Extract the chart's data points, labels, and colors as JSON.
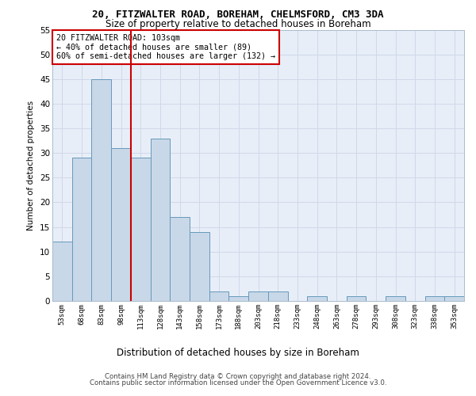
{
  "title1": "20, FITZWALTER ROAD, BOREHAM, CHELMSFORD, CM3 3DA",
  "title2": "Size of property relative to detached houses in Boreham",
  "xlabel": "Distribution of detached houses by size in Boreham",
  "ylabel": "Number of detached properties",
  "categories": [
    "53sqm",
    "68sqm",
    "83sqm",
    "98sqm",
    "113sqm",
    "128sqm",
    "143sqm",
    "158sqm",
    "173sqm",
    "188sqm",
    "203sqm",
    "218sqm",
    "233sqm",
    "248sqm",
    "263sqm",
    "278sqm",
    "293sqm",
    "308sqm",
    "323sqm",
    "338sqm",
    "353sqm"
  ],
  "values": [
    12,
    29,
    45,
    31,
    29,
    33,
    17,
    14,
    2,
    1,
    2,
    2,
    0,
    1,
    0,
    1,
    0,
    1,
    0,
    1,
    1
  ],
  "bar_color": "#c8d8e8",
  "bar_edge_color": "#6699bb",
  "vline_x_pos": 3.5,
  "vline_color": "#cc0000",
  "annotation_text": "20 FITZWALTER ROAD: 103sqm\n← 40% of detached houses are smaller (89)\n60% of semi-detached houses are larger (132) →",
  "annotation_box_color": "#ffffff",
  "annotation_box_edge": "#cc0000",
  "ylim": [
    0,
    55
  ],
  "yticks": [
    0,
    5,
    10,
    15,
    20,
    25,
    30,
    35,
    40,
    45,
    50,
    55
  ],
  "grid_color": "#d0d8e8",
  "bg_color": "#e8eef8",
  "footer1": "Contains HM Land Registry data © Crown copyright and database right 2024.",
  "footer2": "Contains public sector information licensed under the Open Government Licence v3.0."
}
